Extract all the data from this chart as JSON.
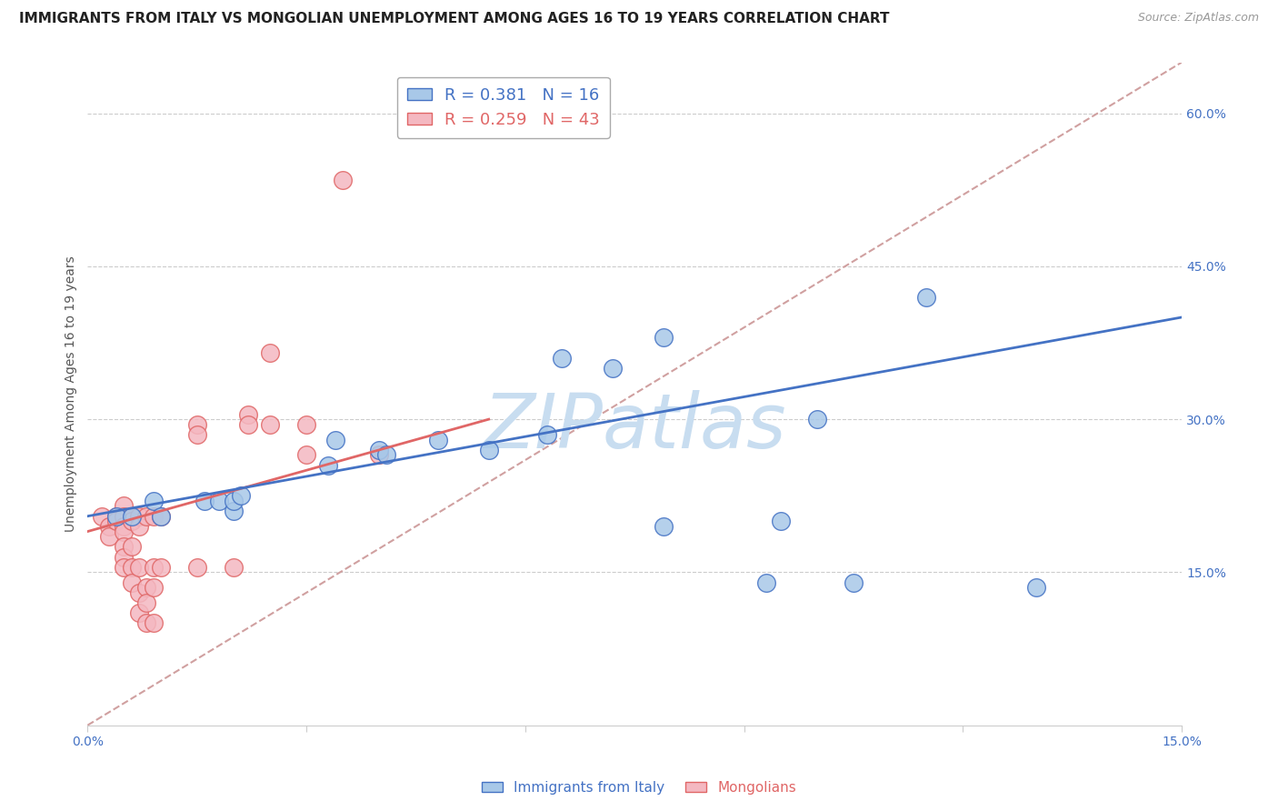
{
  "title": "IMMIGRANTS FROM ITALY VS MONGOLIAN UNEMPLOYMENT AMONG AGES 16 TO 19 YEARS CORRELATION CHART",
  "source": "Source: ZipAtlas.com",
  "ylabel": "Unemployment Among Ages 16 to 19 years",
  "xlim": [
    0.0,
    15.0
  ],
  "ylim": [
    0.0,
    65.0
  ],
  "xtick_positions": [
    0.0,
    3.0,
    6.0,
    9.0,
    12.0,
    15.0
  ],
  "xtick_labels": [
    "0.0%",
    "",
    "",
    "",
    "",
    "15.0%"
  ],
  "yticks_right": [
    15.0,
    30.0,
    45.0,
    60.0
  ],
  "ytick_labels_right": [
    "15.0%",
    "30.0%",
    "45.0%",
    "60.0%"
  ],
  "blue_scatter": [
    [
      0.4,
      20.5
    ],
    [
      0.6,
      20.5
    ],
    [
      0.9,
      22.0
    ],
    [
      1.0,
      20.5
    ],
    [
      1.6,
      22.0
    ],
    [
      1.8,
      22.0
    ],
    [
      2.0,
      21.0
    ],
    [
      2.0,
      22.0
    ],
    [
      2.1,
      22.5
    ],
    [
      3.3,
      25.5
    ],
    [
      3.4,
      28.0
    ],
    [
      4.0,
      27.0
    ],
    [
      4.1,
      26.5
    ],
    [
      4.8,
      28.0
    ],
    [
      5.5,
      27.0
    ],
    [
      6.3,
      28.5
    ],
    [
      6.5,
      36.0
    ],
    [
      7.2,
      35.0
    ],
    [
      7.9,
      38.0
    ],
    [
      7.9,
      19.5
    ],
    [
      9.3,
      14.0
    ],
    [
      9.5,
      20.0
    ],
    [
      10.0,
      30.0
    ],
    [
      10.5,
      14.0
    ],
    [
      11.5,
      42.0
    ],
    [
      13.0,
      13.5
    ]
  ],
  "pink_scatter": [
    [
      0.2,
      20.5
    ],
    [
      0.3,
      19.5
    ],
    [
      0.3,
      18.5
    ],
    [
      0.4,
      20.5
    ],
    [
      0.4,
      20.0
    ],
    [
      0.5,
      21.5
    ],
    [
      0.5,
      20.5
    ],
    [
      0.5,
      19.5
    ],
    [
      0.5,
      19.0
    ],
    [
      0.5,
      17.5
    ],
    [
      0.5,
      16.5
    ],
    [
      0.5,
      15.5
    ],
    [
      0.6,
      20.5
    ],
    [
      0.6,
      20.0
    ],
    [
      0.6,
      17.5
    ],
    [
      0.6,
      15.5
    ],
    [
      0.6,
      14.0
    ],
    [
      0.7,
      20.5
    ],
    [
      0.7,
      19.5
    ],
    [
      0.7,
      15.5
    ],
    [
      0.7,
      13.0
    ],
    [
      0.7,
      11.0
    ],
    [
      0.8,
      20.5
    ],
    [
      0.8,
      13.5
    ],
    [
      0.8,
      12.0
    ],
    [
      0.8,
      10.0
    ],
    [
      0.9,
      20.5
    ],
    [
      0.9,
      15.5
    ],
    [
      0.9,
      13.5
    ],
    [
      0.9,
      10.0
    ],
    [
      1.0,
      20.5
    ],
    [
      1.0,
      15.5
    ],
    [
      1.5,
      29.5
    ],
    [
      1.5,
      28.5
    ],
    [
      1.5,
      15.5
    ],
    [
      2.0,
      15.5
    ],
    [
      2.2,
      30.5
    ],
    [
      2.2,
      29.5
    ],
    [
      2.5,
      36.5
    ],
    [
      2.5,
      29.5
    ],
    [
      3.0,
      29.5
    ],
    [
      3.0,
      26.5
    ],
    [
      3.5,
      53.5
    ],
    [
      4.0,
      26.5
    ]
  ],
  "blue_line": {
    "x0": 0.0,
    "y0": 20.5,
    "x1": 15.0,
    "y1": 40.0
  },
  "pink_line": {
    "x0": 0.0,
    "y0": 19.0,
    "x1": 5.5,
    "y1": 30.0
  },
  "diagonal_line": {
    "x0": 0.0,
    "y0": 0.0,
    "x1": 15.0,
    "y1": 65.0
  },
  "background_color": "#ffffff",
  "grid_color": "#cccccc",
  "blue_fill_color": "#a8c8e8",
  "blue_edge_color": "#4472c4",
  "pink_fill_color": "#f4b8c1",
  "pink_edge_color": "#e06666",
  "blue_line_color": "#4472c4",
  "pink_line_color": "#e06666",
  "diagonal_color": "#d0a0a0",
  "watermark_color": "#c8ddf0",
  "title_fontsize": 11,
  "axis_label_fontsize": 10,
  "tick_fontsize": 10,
  "tick_color": "#4472c4"
}
